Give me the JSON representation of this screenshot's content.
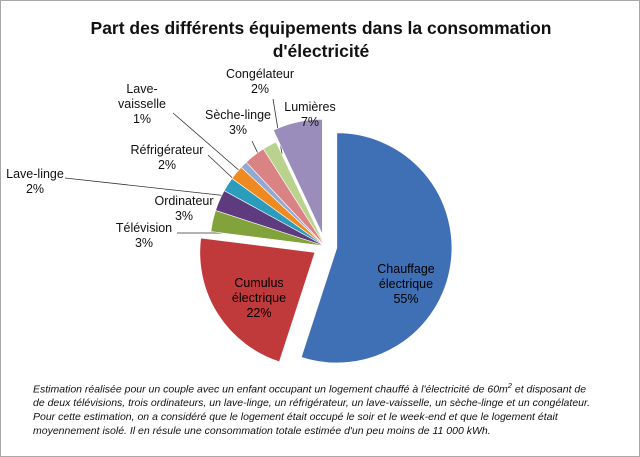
{
  "colors": {
    "chauffage": "#3f6fb5",
    "cumulus": "#c0393b",
    "television": "#82a33c",
    "ordinateur": "#5e3b7f",
    "lave_linge": "#2b9cbb",
    "refrigerateur": "#ef8a21",
    "lave_vaisselle": "#93a9d2",
    "seche_linge": "#d98384",
    "congelateur": "#b9d38e",
    "lumieres": "#9a8dbb"
  },
  "chart_data": {
    "type": "pie",
    "title": "Part des différents équipements dans la consommation d'électricité",
    "slices": [
      {
        "key": "chauffage",
        "label_lines": [
          "Chauffage",
          "électrique"
        ],
        "value_label": "55%",
        "value": 55,
        "explode": 1
      },
      {
        "key": "cumulus",
        "label_lines": [
          "Cumulus",
          "électrique"
        ],
        "value_label": "22%",
        "value": 22,
        "explode": 1
      },
      {
        "key": "television",
        "label_lines": [
          "Télévision"
        ],
        "value_label": "3%",
        "value": 3,
        "explode": 0
      },
      {
        "key": "ordinateur",
        "label_lines": [
          "Ordinateur"
        ],
        "value_label": "3%",
        "value": 3,
        "explode": 0
      },
      {
        "key": "lave_linge",
        "label_lines": [
          "Lave-linge"
        ],
        "value_label": "2%",
        "value": 2,
        "explode": 0
      },
      {
        "key": "refrigerateur",
        "label_lines": [
          "Réfrigérateur"
        ],
        "value_label": "2%",
        "value": 2,
        "explode": 0
      },
      {
        "key": "lave_vaisselle",
        "label_lines": [
          "Lave-",
          "vaisselle"
        ],
        "value_label": "1%",
        "value": 1,
        "explode": 0
      },
      {
        "key": "seche_linge",
        "label_lines": [
          "Sèche-linge"
        ],
        "value_label": "3%",
        "value": 3,
        "explode": 0
      },
      {
        "key": "congelateur",
        "label_lines": [
          "Congélateur"
        ],
        "value_label": "2%",
        "value": 2,
        "explode": 0
      },
      {
        "key": "lumieres",
        "label_lines": [
          "Lumières"
        ],
        "value_label": "7%",
        "value": 7,
        "explode": 1
      }
    ]
  },
  "caption": {
    "part1": "Estimation réalisée pour un couple avec un enfant occupant un logement chauffé à l'électricité de 60m",
    "sup": "2",
    "part2": " et disposant de de deux télévisions, trois ordinateurs, un lave-linge, un réfrigérateur, un lave-vaisselle, un sèche-linge et un congélateur. Pour cette estimation, on a considéré que le logement était occupé le soir et le week-end et que le logement était moyennement isolé. Il en résule une consommation totale estimée d'un peu moins de 11 000 kWh."
  }
}
